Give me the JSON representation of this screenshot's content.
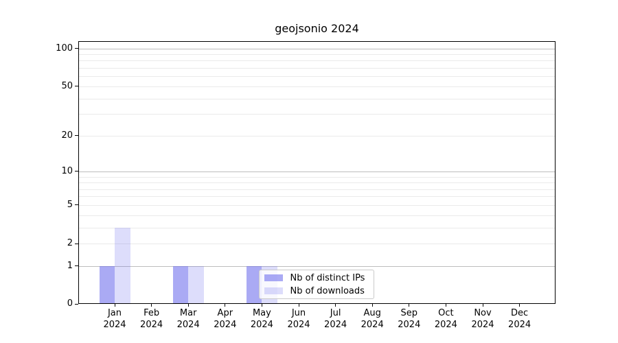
{
  "chart_data": {
    "type": "bar",
    "title": "geojsonio 2024",
    "categories": [
      "Jan 2024",
      "Feb 2024",
      "Mar 2024",
      "Apr 2024",
      "May 2024",
      "Jun 2024",
      "Jul 2024",
      "Aug 2024",
      "Sep 2024",
      "Oct 2024",
      "Nov 2024",
      "Dec 2024"
    ],
    "series": [
      {
        "name": "Nb of distinct IPs",
        "color": "#6464eb",
        "alpha": 0.55,
        "values": [
          1,
          0,
          1,
          0,
          1,
          0,
          0,
          0,
          0,
          0,
          0,
          0
        ]
      },
      {
        "name": "Nb of downloads",
        "color": "#6464eb",
        "alpha": 0.22,
        "values": [
          3,
          0,
          1,
          0,
          1,
          0,
          0,
          0,
          0,
          0,
          0,
          0
        ]
      }
    ],
    "xlabel": "",
    "ylabel": "",
    "yscale": "log10(1+y)",
    "ylim": [
      0,
      114
    ],
    "y_ticks": [
      100,
      50,
      20,
      10,
      5,
      2,
      1,
      0
    ],
    "y_major_grid": [
      1,
      10,
      100
    ],
    "y_minor_grid": [
      2,
      3,
      4,
      5,
      6,
      7,
      8,
      9,
      20,
      30,
      40,
      50,
      60,
      70,
      80,
      90
    ],
    "grid": "horizontal",
    "legend_position": "lower-center-inside"
  }
}
